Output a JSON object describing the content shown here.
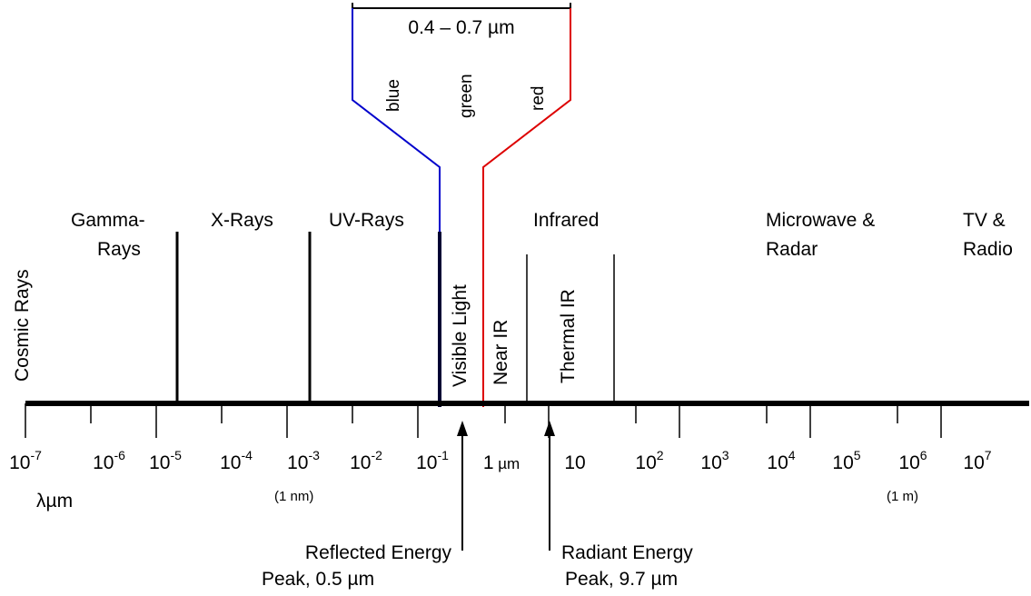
{
  "visible_band": {
    "range_label": "0.4 – 0.7 µm",
    "colors": [
      "blue",
      "green",
      "red"
    ],
    "blue_color": "#0000cc",
    "red_color": "#dd0000"
  },
  "regions": {
    "cosmic": "Cosmic Rays",
    "gamma_line1": "Gamma-",
    "gamma_line2": "Rays",
    "xrays": "X-Rays",
    "uv": "UV-Rays",
    "infrared": "Infrared",
    "microwave_line1": "Microwave &",
    "microwave_line2": "Radar",
    "tv_line1": "TV &",
    "tv_line2": "Radio",
    "visible": "Visible Light",
    "near_ir": "Near IR",
    "thermal_ir": "Thermal IR"
  },
  "axis": {
    "ticks": [
      {
        "base": "10",
        "exp": "-7"
      },
      {
        "base": "10",
        "exp": "-6"
      },
      {
        "base": "10",
        "exp": "-5"
      },
      {
        "base": "10",
        "exp": "-4"
      },
      {
        "base": "10",
        "exp": "-3"
      },
      {
        "base": "10",
        "exp": "-2"
      },
      {
        "base": "10",
        "exp": "-1"
      },
      {
        "base": "1",
        "exp": "",
        "unit": "µm"
      },
      {
        "base": "10",
        "exp": ""
      },
      {
        "base": "10",
        "exp": "2"
      },
      {
        "base": "10",
        "exp": "3"
      },
      {
        "base": "10",
        "exp": "4"
      },
      {
        "base": "10",
        "exp": "5"
      },
      {
        "base": "10",
        "exp": "6"
      },
      {
        "base": "10",
        "exp": "7"
      }
    ],
    "unit_symbol": "λ",
    "unit_text": "µm",
    "nm_note": "(1 nm)",
    "m_note": "(1 m)"
  },
  "peaks": {
    "reflected_line1": "Reflected Energy",
    "reflected_line2": "Peak, 0.5 µm",
    "radiant_line1": "Radiant Energy",
    "radiant_line2": "Peak, 9.7 µm"
  }
}
